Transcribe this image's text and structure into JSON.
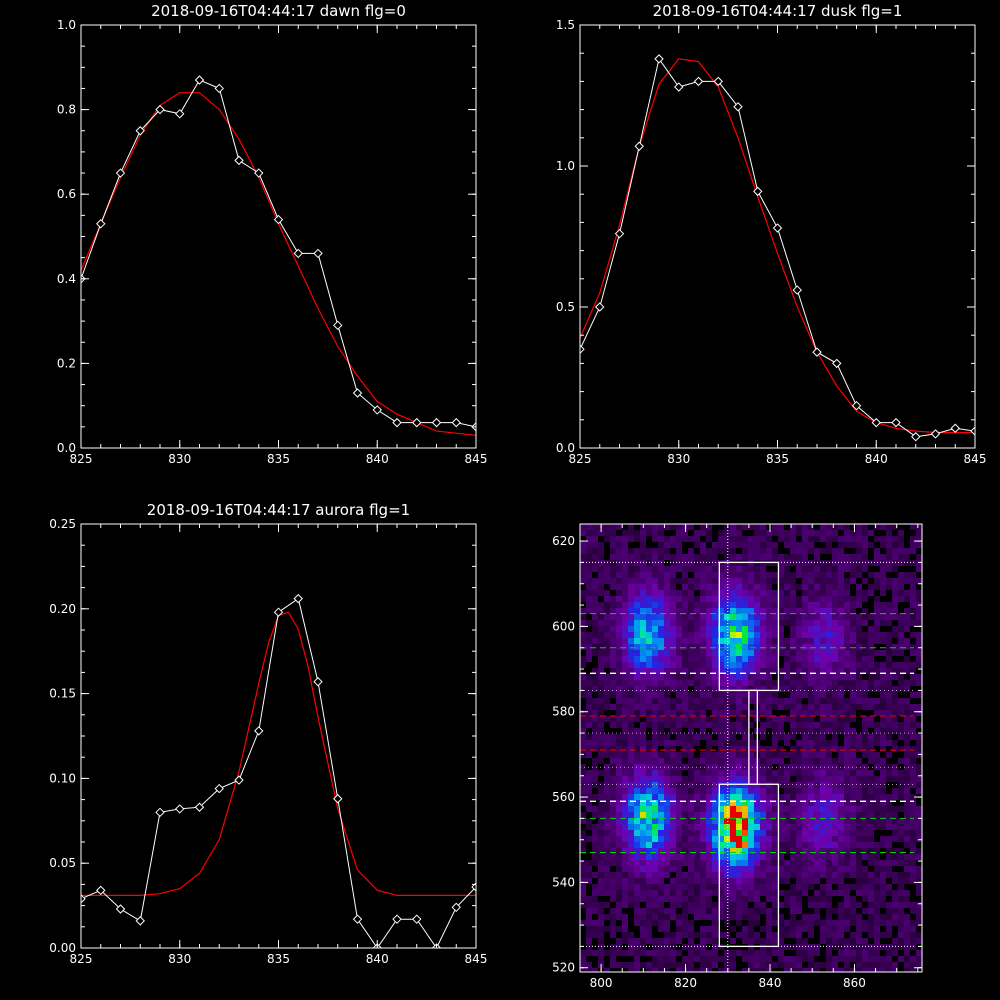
{
  "chart_data": [
    {
      "type": "line",
      "title": "2018-09-16T04:44:17 dawn flg=0",
      "xlim": [
        825,
        845
      ],
      "ylim": [
        0.0,
        1.0
      ],
      "xticks": [
        825,
        830,
        835,
        840,
        845
      ],
      "xtick_labels": [
        "825",
        "830",
        "835",
        "840",
        "845"
      ],
      "yticks": [
        0.0,
        0.2,
        0.4,
        0.6,
        0.8,
        1.0
      ],
      "ytick_labels": [
        "0.0",
        "0.2",
        "0.4",
        "0.6",
        "0.8",
        "1.0"
      ],
      "series": [
        {
          "style": "white-line-diamond-markers",
          "x": [
            825,
            826,
            827,
            828,
            829,
            830,
            831,
            832,
            833,
            834,
            835,
            836,
            837,
            838,
            839,
            840,
            841,
            842,
            843,
            844,
            845
          ],
          "y": [
            0.4,
            0.53,
            0.65,
            0.75,
            0.8,
            0.79,
            0.87,
            0.85,
            0.68,
            0.65,
            0.54,
            0.46,
            0.46,
            0.29,
            0.13,
            0.09,
            0.06,
            0.06,
            0.06,
            0.06,
            0.05
          ]
        },
        {
          "style": "red-fit-curve",
          "x": [
            825,
            826,
            827,
            828,
            829,
            830,
            831,
            832,
            833,
            834,
            835,
            836,
            837,
            838,
            839,
            840,
            841,
            842,
            843,
            844,
            845
          ],
          "y": [
            0.42,
            0.53,
            0.64,
            0.74,
            0.81,
            0.84,
            0.84,
            0.8,
            0.73,
            0.64,
            0.53,
            0.43,
            0.33,
            0.24,
            0.17,
            0.11,
            0.08,
            0.06,
            0.04,
            0.035,
            0.03
          ]
        }
      ],
      "colors": {
        "data": "#ffffff",
        "fit": "#ff0000"
      }
    },
    {
      "type": "line",
      "title": "2018-09-16T04:44:17 dusk flg=1",
      "xlim": [
        825,
        845
      ],
      "ylim": [
        0.0,
        1.5
      ],
      "xticks": [
        825,
        830,
        835,
        840,
        845
      ],
      "xtick_labels": [
        "825",
        "830",
        "835",
        "840",
        "845"
      ],
      "yticks": [
        0.0,
        0.5,
        1.0,
        1.5
      ],
      "ytick_labels": [
        "0.0",
        "0.5",
        "1.0",
        "1.5"
      ],
      "series": [
        {
          "style": "white-line-diamond-markers",
          "x": [
            825,
            826,
            827,
            828,
            829,
            830,
            831,
            832,
            833,
            834,
            835,
            836,
            837,
            838,
            839,
            840,
            841,
            842,
            843,
            844,
            845
          ],
          "y": [
            0.35,
            0.5,
            0.76,
            1.07,
            1.38,
            1.28,
            1.3,
            1.3,
            1.21,
            0.91,
            0.78,
            0.56,
            0.34,
            0.3,
            0.15,
            0.09,
            0.09,
            0.04,
            0.05,
            0.07,
            0.06
          ]
        },
        {
          "style": "red-fit-curve",
          "x": [
            825,
            826,
            827,
            828,
            829,
            830,
            831,
            832,
            833,
            834,
            835,
            836,
            837,
            838,
            839,
            840,
            841,
            842,
            843,
            844,
            845
          ],
          "y": [
            0.39,
            0.55,
            0.79,
            1.07,
            1.29,
            1.38,
            1.37,
            1.28,
            1.1,
            0.89,
            0.69,
            0.5,
            0.34,
            0.22,
            0.13,
            0.09,
            0.07,
            0.06,
            0.055,
            0.055,
            0.055
          ]
        }
      ],
      "colors": {
        "data": "#ffffff",
        "fit": "#ff0000"
      }
    },
    {
      "type": "line",
      "title": "2018-09-16T04:44:17 aurora flg=1",
      "xlim": [
        825,
        845
      ],
      "ylim": [
        0.0,
        0.25
      ],
      "xticks": [
        825,
        830,
        835,
        840,
        845
      ],
      "xtick_labels": [
        "825",
        "830",
        "835",
        "840",
        "845"
      ],
      "yticks": [
        0.0,
        0.05,
        0.1,
        0.15,
        0.2,
        0.25
      ],
      "ytick_labels": [
        "0.00",
        "0.05",
        "0.10",
        "0.15",
        "0.20",
        "0.25"
      ],
      "series": [
        {
          "style": "white-line-diamond-markers",
          "x": [
            825,
            826,
            827,
            828,
            829,
            830,
            831,
            832,
            833,
            834,
            835,
            836,
            837,
            838,
            839,
            840,
            841,
            842,
            843,
            844,
            845
          ],
          "y": [
            0.029,
            0.034,
            0.023,
            0.016,
            0.08,
            0.082,
            0.083,
            0.094,
            0.099,
            0.128,
            0.198,
            0.206,
            0.157,
            0.088,
            0.017,
            0.0,
            0.017,
            0.017,
            0.0,
            0.024,
            0.036
          ]
        },
        {
          "style": "red-fit-curve",
          "x": [
            825,
            826,
            827,
            828,
            829,
            830,
            831,
            832,
            833,
            833.5,
            834,
            834.5,
            835,
            835.5,
            836,
            836.5,
            837,
            838,
            839,
            840,
            841,
            842,
            843,
            844,
            845
          ],
          "y": [
            0.031,
            0.031,
            0.031,
            0.031,
            0.032,
            0.035,
            0.044,
            0.064,
            0.104,
            0.13,
            0.156,
            0.18,
            0.196,
            0.198,
            0.188,
            0.166,
            0.136,
            0.082,
            0.046,
            0.034,
            0.031,
            0.031,
            0.031,
            0.031,
            0.031
          ]
        }
      ],
      "colors": {
        "data": "#ffffff",
        "fit": "#ff0000"
      }
    },
    {
      "type": "heatmap",
      "xlim": [
        795,
        876
      ],
      "ylim": [
        519,
        624
      ],
      "xticks": [
        800,
        820,
        840,
        860
      ],
      "xtick_labels": [
        "800",
        "820",
        "840",
        "860"
      ],
      "yticks": [
        520,
        540,
        560,
        580,
        600,
        620
      ],
      "ytick_labels": [
        "520",
        "540",
        "560",
        "580",
        "600",
        "620"
      ],
      "colormap": "rainbow (black-purple-blue-cyan-green-yellow-red)",
      "blobs": [
        {
          "x": 811,
          "y": 598,
          "peak": 0.5
        },
        {
          "x": 832,
          "y": 598,
          "peak": 0.62
        },
        {
          "x": 811,
          "y": 555,
          "peak": 0.62
        },
        {
          "x": 832,
          "y": 553,
          "peak": 0.95
        },
        {
          "x": 853,
          "y": 597,
          "peak": 0.2
        },
        {
          "x": 853,
          "y": 555,
          "peak": 0.22
        }
      ],
      "boxes": [
        {
          "x0": 828,
          "x1": 842,
          "y0": 585,
          "y1": 615
        },
        {
          "x0": 828,
          "x1": 842,
          "y0": 525,
          "y1": 563
        },
        {
          "x0": 835,
          "x1": 837,
          "y0": 563,
          "y1": 585
        }
      ],
      "vertical_dotted_line": {
        "x": 830
      },
      "horizontal_lines": [
        {
          "y": 615,
          "style": "white-dotted"
        },
        {
          "y": 525,
          "style": "white-dotted"
        },
        {
          "y": 603,
          "style": "green-dashed"
        },
        {
          "y": 595,
          "style": "green-dashed"
        },
        {
          "y": 589,
          "style": "white-dashed"
        },
        {
          "y": 559,
          "style": "white-dashed"
        },
        {
          "y": 555,
          "style": "green-dashed"
        },
        {
          "y": 547,
          "style": "green-dashed"
        },
        {
          "y": 579,
          "style": "red-dashed"
        },
        {
          "y": 571,
          "style": "red-dashed"
        },
        {
          "y": 585,
          "style": "white-dotted-thin"
        },
        {
          "y": 575,
          "style": "white-dotted-thin"
        },
        {
          "y": 567,
          "style": "white-dotted-thin"
        },
        {
          "y": 563,
          "style": "white-dotted-thin"
        }
      ],
      "colors": {
        "green": "#00d000",
        "red": "#d00000",
        "white": "#ffffff"
      }
    }
  ]
}
